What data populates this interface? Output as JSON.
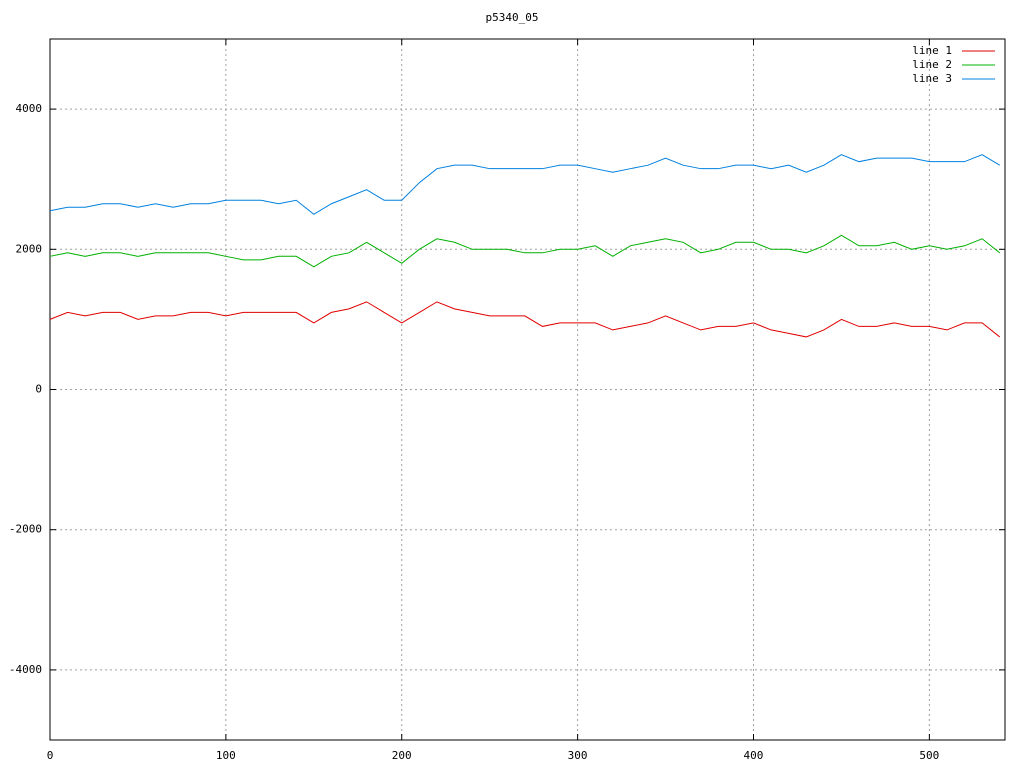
{
  "chart_data": {
    "type": "line",
    "title": "p5340_05",
    "x": [
      0,
      10,
      20,
      30,
      40,
      50,
      60,
      70,
      80,
      90,
      100,
      110,
      120,
      130,
      140,
      150,
      160,
      170,
      180,
      190,
      200,
      210,
      220,
      230,
      240,
      250,
      260,
      270,
      280,
      290,
      300,
      310,
      320,
      330,
      340,
      350,
      360,
      370,
      380,
      390,
      400,
      410,
      420,
      430,
      440,
      450,
      460,
      470,
      480,
      490,
      500,
      510,
      520,
      530,
      540
    ],
    "series": [
      {
        "name": "line 1",
        "color": "#e00000",
        "values": [
          1000,
          1100,
          1050,
          1100,
          1100,
          1000,
          1050,
          1050,
          1100,
          1100,
          1050,
          1100,
          1100,
          1100,
          1100,
          950,
          1100,
          1150,
          1250,
          1100,
          950,
          1100,
          1250,
          1150,
          1100,
          1050,
          1050,
          1050,
          900,
          950,
          950,
          950,
          850,
          900,
          950,
          1050,
          950,
          850,
          900,
          900,
          950,
          850,
          800,
          750,
          850,
          1000,
          900,
          900,
          950,
          900,
          900,
          850,
          950,
          950,
          750
        ]
      },
      {
        "name": "line 2",
        "color": "#00b000",
        "values": [
          1900,
          1950,
          1900,
          1950,
          1950,
          1900,
          1950,
          1950,
          1950,
          1950,
          1900,
          1850,
          1850,
          1900,
          1900,
          1750,
          1900,
          1950,
          2100,
          1950,
          1800,
          2000,
          2150,
          2100,
          2000,
          2000,
          2000,
          1950,
          1950,
          2000,
          2000,
          2050,
          1900,
          2050,
          2100,
          2150,
          2100,
          1950,
          2000,
          2100,
          2100,
          2000,
          2000,
          1950,
          2050,
          2200,
          2050,
          2050,
          2100,
          2000,
          2050,
          2000,
          2050,
          2150,
          1950
        ]
      },
      {
        "name": "line 3",
        "color": "#0080e0",
        "values": [
          2550,
          2600,
          2600,
          2650,
          2650,
          2600,
          2650,
          2600,
          2650,
          2650,
          2700,
          2700,
          2700,
          2650,
          2700,
          2500,
          2650,
          2750,
          2850,
          2700,
          2700,
          2950,
          3150,
          3200,
          3200,
          3150,
          3150,
          3150,
          3150,
          3200,
          3200,
          3150,
          3100,
          3150,
          3200,
          3300,
          3200,
          3150,
          3150,
          3200,
          3200,
          3150,
          3200,
          3100,
          3200,
          3350,
          3250,
          3300,
          3300,
          3300,
          3250,
          3250,
          3250,
          3350,
          3200
        ]
      }
    ],
    "xlim": [
      0,
      543
    ],
    "ylim": [
      -5000,
      5000
    ],
    "xticks": [
      0,
      100,
      200,
      300,
      400,
      500
    ],
    "yticks": [
      -4000,
      -2000,
      0,
      2000,
      4000
    ],
    "grid": true,
    "legend": "top-right"
  }
}
